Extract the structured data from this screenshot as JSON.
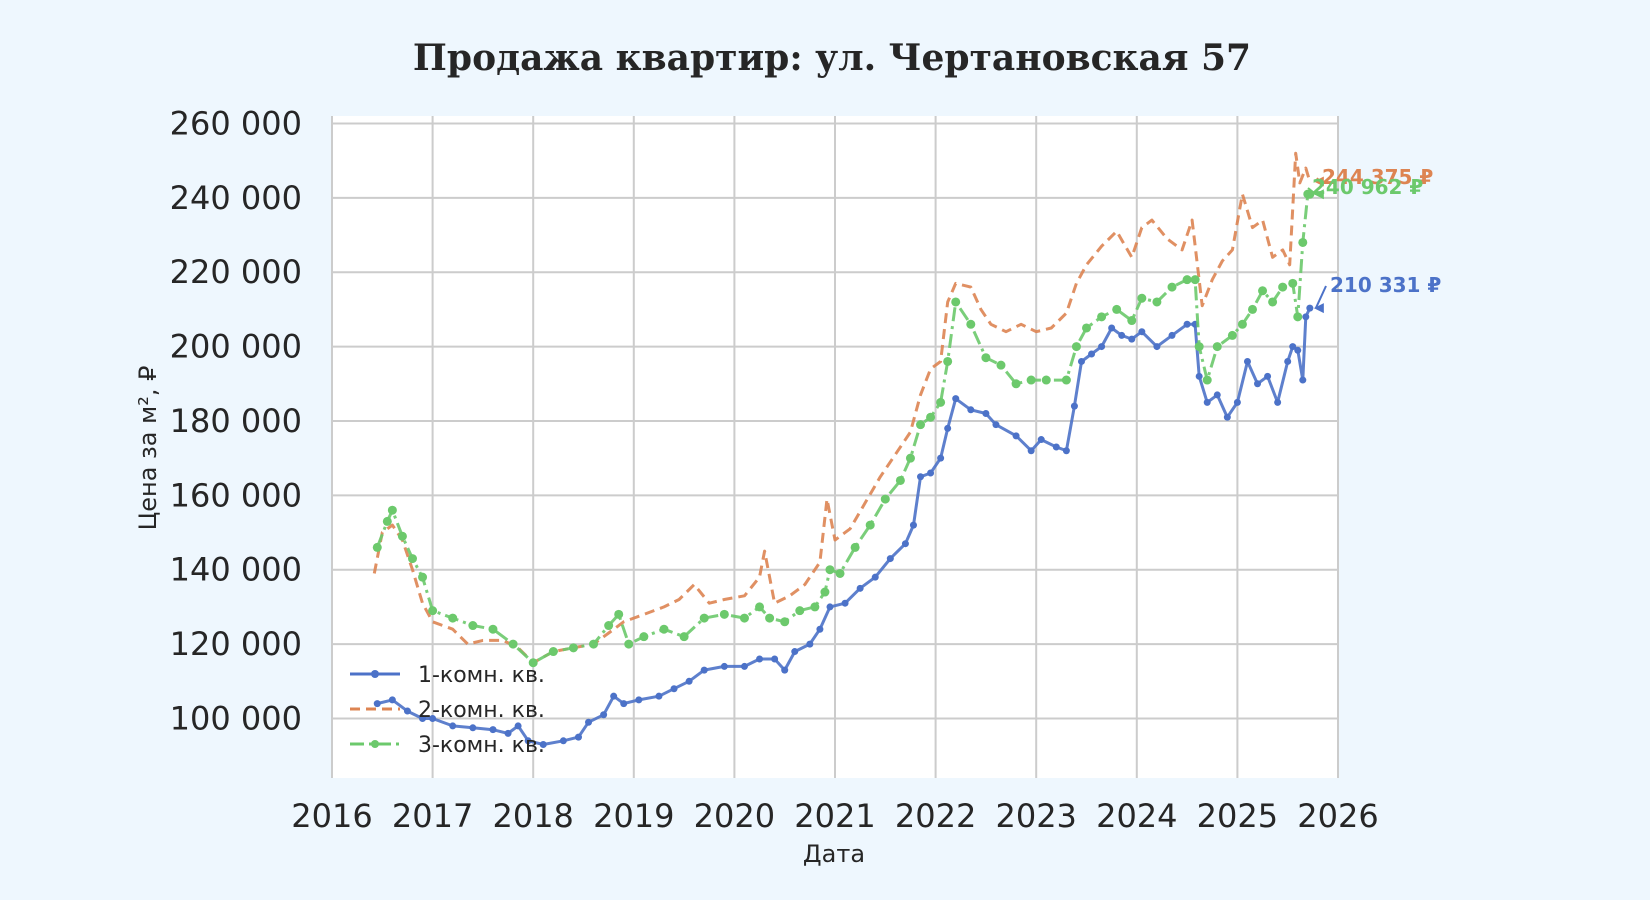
{
  "chart_data": {
    "type": "line",
    "title": "Продажа квартир: ул. Чертановская 57",
    "xlabel": "Дата",
    "ylabel": "Цена за м², ₽",
    "xlim": [
      2016,
      2026
    ],
    "ylim": [
      84000,
      262000
    ],
    "x_ticks": [
      "2016",
      "2017",
      "2018",
      "2019",
      "2020",
      "2021",
      "2022",
      "2023",
      "2024",
      "2025",
      "2026"
    ],
    "y_ticks": [
      "100 000",
      "120 000",
      "140 000",
      "160 000",
      "180 000",
      "200 000",
      "220 000",
      "240 000",
      "260 000"
    ],
    "grid": true,
    "legend_position": "lower-left",
    "series": [
      {
        "name": "1-комн. кв.",
        "color": "#4c72c8",
        "style": "solid-marker",
        "end_label": "210 331 ₽",
        "points": [
          [
            2016.45,
            104000
          ],
          [
            2016.6,
            105000
          ],
          [
            2016.75,
            102000
          ],
          [
            2016.9,
            100000
          ],
          [
            2017.0,
            100000
          ],
          [
            2017.2,
            98000
          ],
          [
            2017.4,
            97500
          ],
          [
            2017.6,
            97000
          ],
          [
            2017.75,
            96000
          ],
          [
            2017.85,
            98000
          ],
          [
            2017.95,
            94000
          ],
          [
            2018.1,
            93000
          ],
          [
            2018.3,
            94000
          ],
          [
            2018.45,
            95000
          ],
          [
            2018.55,
            99000
          ],
          [
            2018.7,
            101000
          ],
          [
            2018.8,
            106000
          ],
          [
            2018.9,
            104000
          ],
          [
            2019.05,
            105000
          ],
          [
            2019.25,
            106000
          ],
          [
            2019.4,
            108000
          ],
          [
            2019.55,
            110000
          ],
          [
            2019.7,
            113000
          ],
          [
            2019.9,
            114000
          ],
          [
            2020.1,
            114000
          ],
          [
            2020.25,
            116000
          ],
          [
            2020.4,
            116000
          ],
          [
            2020.5,
            113000
          ],
          [
            2020.6,
            118000
          ],
          [
            2020.75,
            120000
          ],
          [
            2020.85,
            124000
          ],
          [
            2020.95,
            130000
          ],
          [
            2021.1,
            131000
          ],
          [
            2021.25,
            135000
          ],
          [
            2021.4,
            138000
          ],
          [
            2021.55,
            143000
          ],
          [
            2021.7,
            147000
          ],
          [
            2021.78,
            152000
          ],
          [
            2021.85,
            165000
          ],
          [
            2021.95,
            166000
          ],
          [
            2022.05,
            170000
          ],
          [
            2022.12,
            178000
          ],
          [
            2022.2,
            186000
          ],
          [
            2022.35,
            183000
          ],
          [
            2022.5,
            182000
          ],
          [
            2022.6,
            179000
          ],
          [
            2022.8,
            176000
          ],
          [
            2022.95,
            172000
          ],
          [
            2023.05,
            175000
          ],
          [
            2023.2,
            173000
          ],
          [
            2023.3,
            172000
          ],
          [
            2023.38,
            184000
          ],
          [
            2023.45,
            196000
          ],
          [
            2023.55,
            198000
          ],
          [
            2023.65,
            200000
          ],
          [
            2023.75,
            205000
          ],
          [
            2023.85,
            203000
          ],
          [
            2023.95,
            202000
          ],
          [
            2024.05,
            204000
          ],
          [
            2024.2,
            200000
          ],
          [
            2024.35,
            203000
          ],
          [
            2024.5,
            206000
          ],
          [
            2024.58,
            206000
          ],
          [
            2024.62,
            192000
          ],
          [
            2024.7,
            185000
          ],
          [
            2024.8,
            187000
          ],
          [
            2024.9,
            181000
          ],
          [
            2025.0,
            185000
          ],
          [
            2025.1,
            196000
          ],
          [
            2025.2,
            190000
          ],
          [
            2025.3,
            192000
          ],
          [
            2025.4,
            185000
          ],
          [
            2025.5,
            196000
          ],
          [
            2025.55,
            200000
          ],
          [
            2025.6,
            199000
          ],
          [
            2025.65,
            191000
          ],
          [
            2025.68,
            208000
          ],
          [
            2025.72,
            210331
          ]
        ]
      },
      {
        "name": "2-комн. кв.",
        "color": "#dd8452",
        "style": "dashed",
        "end_label": "244 375 ₽",
        "points": [
          [
            2016.42,
            139000
          ],
          [
            2016.5,
            150000
          ],
          [
            2016.6,
            152000
          ],
          [
            2016.7,
            148000
          ],
          [
            2016.8,
            140000
          ],
          [
            2016.9,
            131000
          ],
          [
            2017.0,
            126000
          ],
          [
            2017.2,
            124000
          ],
          [
            2017.35,
            120000
          ],
          [
            2017.5,
            121000
          ],
          [
            2017.7,
            121000
          ],
          [
            2017.85,
            119000
          ],
          [
            2018.0,
            115000
          ],
          [
            2018.2,
            118000
          ],
          [
            2018.4,
            119000
          ],
          [
            2018.6,
            120000
          ],
          [
            2018.75,
            123000
          ],
          [
            2018.9,
            126000
          ],
          [
            2019.1,
            128000
          ],
          [
            2019.3,
            130000
          ],
          [
            2019.45,
            132000
          ],
          [
            2019.6,
            136000
          ],
          [
            2019.75,
            131000
          ],
          [
            2019.9,
            132000
          ],
          [
            2020.1,
            133000
          ],
          [
            2020.25,
            138000
          ],
          [
            2020.3,
            145000
          ],
          [
            2020.4,
            131000
          ],
          [
            2020.55,
            133000
          ],
          [
            2020.7,
            136000
          ],
          [
            2020.85,
            142000
          ],
          [
            2020.92,
            159000
          ],
          [
            2021.0,
            148000
          ],
          [
            2021.15,
            151000
          ],
          [
            2021.3,
            158000
          ],
          [
            2021.45,
            165000
          ],
          [
            2021.6,
            171000
          ],
          [
            2021.75,
            177000
          ],
          [
            2021.85,
            187000
          ],
          [
            2021.95,
            194000
          ],
          [
            2022.05,
            196000
          ],
          [
            2022.12,
            212000
          ],
          [
            2022.2,
            217000
          ],
          [
            2022.35,
            216000
          ],
          [
            2022.45,
            210000
          ],
          [
            2022.55,
            206000
          ],
          [
            2022.7,
            204000
          ],
          [
            2022.85,
            206000
          ],
          [
            2023.0,
            204000
          ],
          [
            2023.15,
            205000
          ],
          [
            2023.3,
            209000
          ],
          [
            2023.4,
            217000
          ],
          [
            2023.5,
            222000
          ],
          [
            2023.65,
            227000
          ],
          [
            2023.8,
            231000
          ],
          [
            2023.95,
            224000
          ],
          [
            2024.05,
            232000
          ],
          [
            2024.15,
            234000
          ],
          [
            2024.3,
            229000
          ],
          [
            2024.45,
            226000
          ],
          [
            2024.55,
            234000
          ],
          [
            2024.65,
            211000
          ],
          [
            2024.75,
            218000
          ],
          [
            2024.85,
            223000
          ],
          [
            2024.95,
            226000
          ],
          [
            2025.05,
            241000
          ],
          [
            2025.15,
            232000
          ],
          [
            2025.25,
            234000
          ],
          [
            2025.35,
            224000
          ],
          [
            2025.45,
            226000
          ],
          [
            2025.52,
            222000
          ],
          [
            2025.58,
            252000
          ],
          [
            2025.62,
            244000
          ],
          [
            2025.68,
            248000
          ],
          [
            2025.72,
            244375
          ]
        ]
      },
      {
        "name": "3-комн. кв.",
        "color": "#6cc96c",
        "style": "dashdot-marker",
        "end_label": "240 962 ₽",
        "points": [
          [
            2016.45,
            146000
          ],
          [
            2016.55,
            153000
          ],
          [
            2016.6,
            156000
          ],
          [
            2016.7,
            149000
          ],
          [
            2016.8,
            143000
          ],
          [
            2016.9,
            138000
          ],
          [
            2017.0,
            129000
          ],
          [
            2017.2,
            127000
          ],
          [
            2017.4,
            125000
          ],
          [
            2017.6,
            124000
          ],
          [
            2017.8,
            120000
          ],
          [
            2018.0,
            115000
          ],
          [
            2018.2,
            118000
          ],
          [
            2018.4,
            119000
          ],
          [
            2018.6,
            120000
          ],
          [
            2018.75,
            125000
          ],
          [
            2018.85,
            128000
          ],
          [
            2018.95,
            120000
          ],
          [
            2019.1,
            122000
          ],
          [
            2019.3,
            124000
          ],
          [
            2019.5,
            122000
          ],
          [
            2019.7,
            127000
          ],
          [
            2019.9,
            128000
          ],
          [
            2020.1,
            127000
          ],
          [
            2020.25,
            130000
          ],
          [
            2020.35,
            127000
          ],
          [
            2020.5,
            126000
          ],
          [
            2020.65,
            129000
          ],
          [
            2020.8,
            130000
          ],
          [
            2020.9,
            134000
          ],
          [
            2020.95,
            140000
          ],
          [
            2021.05,
            139000
          ],
          [
            2021.2,
            146000
          ],
          [
            2021.35,
            152000
          ],
          [
            2021.5,
            159000
          ],
          [
            2021.65,
            164000
          ],
          [
            2021.75,
            170000
          ],
          [
            2021.85,
            179000
          ],
          [
            2021.95,
            181000
          ],
          [
            2022.05,
            185000
          ],
          [
            2022.12,
            196000
          ],
          [
            2022.2,
            212000
          ],
          [
            2022.35,
            206000
          ],
          [
            2022.5,
            197000
          ],
          [
            2022.65,
            195000
          ],
          [
            2022.8,
            190000
          ],
          [
            2022.95,
            191000
          ],
          [
            2023.1,
            191000
          ],
          [
            2023.3,
            191000
          ],
          [
            2023.4,
            200000
          ],
          [
            2023.5,
            205000
          ],
          [
            2023.65,
            208000
          ],
          [
            2023.8,
            210000
          ],
          [
            2023.95,
            207000
          ],
          [
            2024.05,
            213000
          ],
          [
            2024.2,
            212000
          ],
          [
            2024.35,
            216000
          ],
          [
            2024.5,
            218000
          ],
          [
            2024.58,
            218000
          ],
          [
            2024.62,
            200000
          ],
          [
            2024.7,
            191000
          ],
          [
            2024.8,
            200000
          ],
          [
            2024.95,
            203000
          ],
          [
            2025.05,
            206000
          ],
          [
            2025.15,
            210000
          ],
          [
            2025.25,
            215000
          ],
          [
            2025.35,
            212000
          ],
          [
            2025.45,
            216000
          ],
          [
            2025.55,
            217000
          ],
          [
            2025.6,
            208000
          ],
          [
            2025.65,
            228000
          ],
          [
            2025.7,
            241000
          ],
          [
            2025.72,
            240962
          ]
        ]
      }
    ]
  }
}
